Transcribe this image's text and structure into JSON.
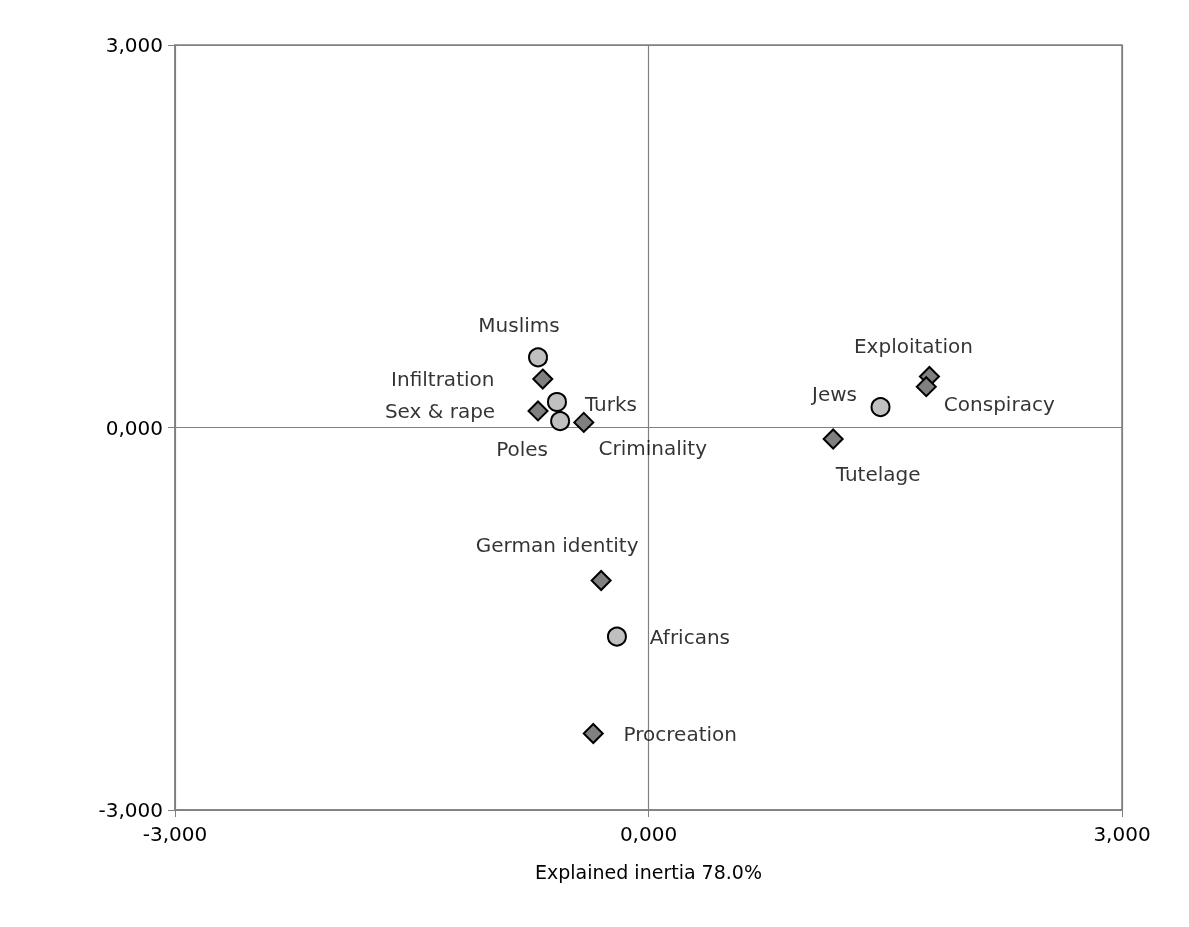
{
  "chart_data": {
    "type": "scatter",
    "xlabel": "Explained inertia 78.0%",
    "xlim": [
      -3,
      3
    ],
    "ylim": [
      -3,
      3
    ],
    "xticks": [
      {
        "value": -3,
        "label": "-3,000"
      },
      {
        "value": 0,
        "label": "0,000"
      },
      {
        "value": 3,
        "label": "3,000"
      }
    ],
    "yticks": [
      {
        "value": -3,
        "label": "-3,000"
      },
      {
        "value": 0,
        "label": "0,000"
      },
      {
        "value": 3,
        "label": "3,000"
      }
    ],
    "grid": true,
    "series": [
      {
        "color": "#c0c0c0",
        "marker": "circle",
        "x": [
          -0.7,
          -0.58,
          -0.56,
          1.47,
          -0.2
        ],
        "values": [
          0.55,
          0.2,
          0.05,
          0.16,
          -1.64
        ]
      },
      {
        "color": "#808080",
        "marker": "diamond",
        "x": [
          -0.67,
          -0.7,
          -0.41,
          1.78,
          1.76,
          1.17,
          -0.3,
          -0.35
        ],
        "values": [
          0.38,
          0.13,
          0.04,
          0.4,
          0.32,
          -0.09,
          -1.2,
          -2.4
        ]
      }
    ],
    "annotations": [
      {
        "text": "Muslims",
        "x": -0.7,
        "y": 0.55
      },
      {
        "text": "Infiltration",
        "x": -0.67,
        "y": 0.38
      },
      {
        "text": "Turks",
        "x": -0.58,
        "y": 0.2
      },
      {
        "text": "Sex & rape",
        "x": -0.7,
        "y": 0.13
      },
      {
        "text": "Poles",
        "x": -0.56,
        "y": 0.05
      },
      {
        "text": "Criminality",
        "x": -0.41,
        "y": 0.04
      },
      {
        "text": "Jews",
        "x": 1.47,
        "y": 0.16
      },
      {
        "text": "Exploitation",
        "x": 1.78,
        "y": 0.4
      },
      {
        "text": "Conspiracy",
        "x": 1.76,
        "y": 0.32
      },
      {
        "text": "Tutelage",
        "x": 1.17,
        "y": -0.09
      },
      {
        "text": "German identity",
        "x": -0.3,
        "y": -1.2
      },
      {
        "text": "Africans",
        "x": -0.2,
        "y": -1.64
      },
      {
        "text": "Procreation",
        "x": -0.35,
        "y": -2.4
      }
    ]
  }
}
